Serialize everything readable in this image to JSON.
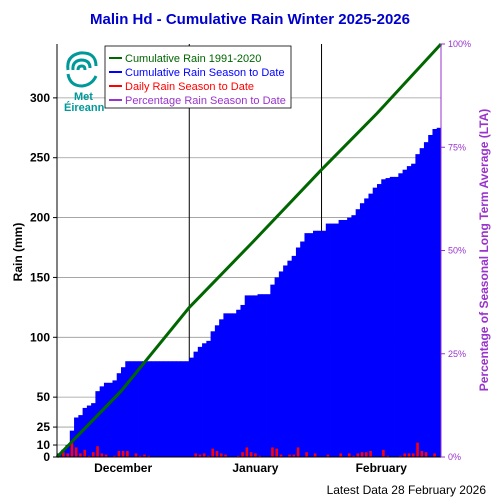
{
  "colors": {
    "title": "#0000cc",
    "normal": "#006600",
    "season": "#0000ff",
    "daily": "#ff0000",
    "percent": "#9933cc",
    "logo": "#009999"
  },
  "logo": {
    "line1": "Met",
    "line2": "Éireann"
  },
  "footer": "Latest Data 28 February 2026",
  "chart_data": {
    "type": "bar",
    "title": "Malin Hd - Cumulative Rain Winter 2025-2026",
    "ylabel": "Rain (mm)",
    "y2label": "Percentage  of Seasonal Long Term Average (LTA)",
    "ylim": [
      0,
      345
    ],
    "yticks": [
      0,
      10,
      25,
      50,
      100,
      150,
      200,
      250,
      300
    ],
    "y2ticks": [
      "0%",
      "25%",
      "50%",
      "75%",
      "100%"
    ],
    "lta_total": 345,
    "months": [
      "December",
      "January",
      "February"
    ],
    "month_days": [
      31,
      31,
      28
    ],
    "grid": true,
    "legend_position": "top-left",
    "legend": [
      "Cumulative Rain 1991-2020",
      "Cumulative Rain Season to Date",
      "Daily Rain Season to Date",
      "Percentage Rain Season to Date"
    ],
    "series": [
      {
        "name": "Cumulative Rain 1991-2020",
        "type": "line",
        "points": [
          [
            0,
            0
          ],
          [
            15,
            55
          ],
          [
            31,
            125
          ],
          [
            46,
            180
          ],
          [
            62,
            240
          ],
          [
            75,
            287
          ],
          [
            90,
            345
          ]
        ]
      },
      {
        "name": "Daily Rain Season to Date",
        "type": "bar",
        "values": [
          2,
          4,
          3,
          12,
          8,
          3,
          6,
          1,
          4,
          9,
          3,
          2,
          0,
          1,
          5,
          5,
          5,
          0,
          3,
          1,
          2,
          1,
          0,
          0,
          0,
          0,
          0,
          0,
          0,
          0,
          0,
          0,
          3,
          2,
          3,
          1,
          7,
          5,
          3,
          2,
          0,
          0,
          1,
          4,
          8,
          4,
          3,
          1,
          0,
          0,
          8,
          7,
          2,
          0,
          2,
          2,
          8,
          0,
          4,
          0,
          3,
          0,
          0,
          2,
          0,
          0,
          3,
          0,
          3,
          1,
          3,
          4,
          4,
          5,
          0,
          0,
          6,
          1,
          0,
          0,
          1,
          3,
          3,
          3,
          12,
          5,
          4,
          0,
          3,
          0
        ]
      },
      {
        "name": "Cumulative Rain Season to Date",
        "type": "bar",
        "values": [
          3,
          6,
          10,
          22,
          33,
          35,
          41,
          43,
          45,
          55,
          59,
          62,
          62,
          64,
          70,
          75,
          80,
          80,
          80,
          80,
          80,
          80,
          80,
          80,
          80,
          80,
          80,
          80,
          80,
          80,
          80,
          83,
          88,
          92,
          95,
          97,
          105,
          110,
          115,
          120,
          120,
          120,
          123,
          127,
          135,
          135,
          135,
          136,
          136,
          136,
          144,
          150,
          155,
          160,
          164,
          168,
          175,
          180,
          187,
          187,
          189,
          189,
          189,
          195,
          195,
          195,
          198,
          198,
          200,
          202,
          207,
          212,
          216,
          220,
          225,
          228,
          232,
          233,
          234,
          234,
          237,
          240,
          243,
          245,
          253,
          258,
          263,
          269,
          274,
          275
        ]
      }
    ]
  }
}
